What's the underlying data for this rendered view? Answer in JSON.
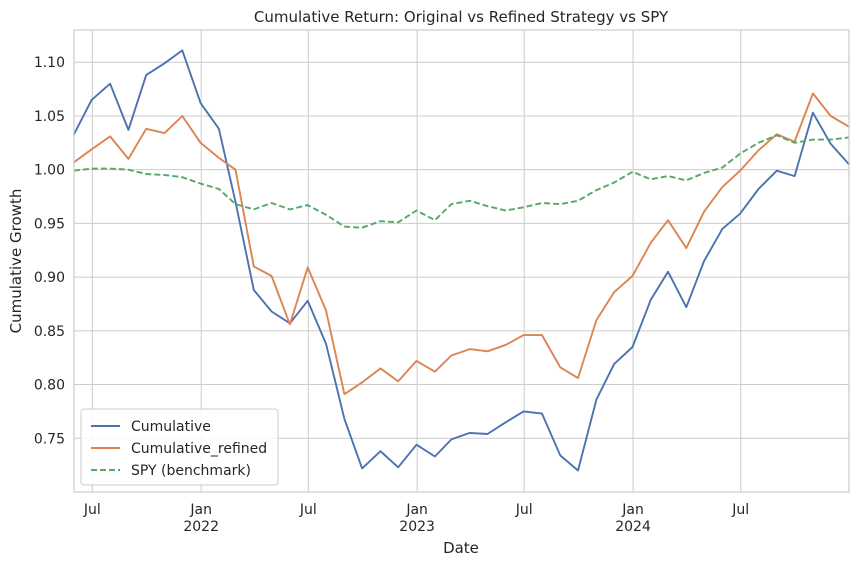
{
  "chart_data": {
    "type": "line",
    "title": "Cumulative Return: Original vs Refined Strategy vs SPY",
    "xlabel": "Date",
    "ylabel": "Cumulative Growth",
    "xlim": [
      "2021-05-31",
      "2024-12-31"
    ],
    "ylim": [
      0.7,
      1.13
    ],
    "grid": true,
    "legend_position": "lower-left",
    "y_ticks": [
      0.75,
      0.8,
      0.85,
      0.9,
      0.95,
      1.0,
      1.05,
      1.1
    ],
    "y_tick_labels": [
      "0.75",
      "0.80",
      "0.85",
      "0.90",
      "0.95",
      "1.00",
      "1.05",
      "1.10"
    ],
    "x_ticks": [
      {
        "date": "2021-07-01",
        "label": "Jul",
        "year": ""
      },
      {
        "date": "2022-01-01",
        "label": "Jan",
        "year": "2022"
      },
      {
        "date": "2022-07-01",
        "label": "Jul",
        "year": ""
      },
      {
        "date": "2023-01-01",
        "label": "Jan",
        "year": "2023"
      },
      {
        "date": "2023-07-01",
        "label": "Jul",
        "year": ""
      },
      {
        "date": "2024-01-01",
        "label": "Jan",
        "year": "2024"
      },
      {
        "date": "2024-07-01",
        "label": "Jul",
        "year": ""
      }
    ],
    "x": [
      "2021-05-31",
      "2021-06-30",
      "2021-07-31",
      "2021-08-31",
      "2021-09-30",
      "2021-10-31",
      "2021-11-30",
      "2021-12-31",
      "2022-01-31",
      "2022-02-28",
      "2022-03-31",
      "2022-04-30",
      "2022-05-31",
      "2022-06-30",
      "2022-07-31",
      "2022-08-31",
      "2022-09-30",
      "2022-10-31",
      "2022-11-30",
      "2022-12-31",
      "2023-01-31",
      "2023-02-28",
      "2023-03-31",
      "2023-04-30",
      "2023-05-31",
      "2023-06-30",
      "2023-07-31",
      "2023-08-31",
      "2023-09-30",
      "2023-10-31",
      "2023-11-30",
      "2023-12-31",
      "2024-01-31",
      "2024-02-29",
      "2024-03-31",
      "2024-04-30",
      "2024-05-31",
      "2024-06-30",
      "2024-07-31",
      "2024-08-31",
      "2024-09-30",
      "2024-10-31",
      "2024-11-30",
      "2024-12-31"
    ],
    "series": [
      {
        "name": "Cumulative",
        "color": "#4c72b0",
        "dash": "solid",
        "values": [
          1.033,
          1.065,
          1.08,
          1.037,
          1.088,
          1.099,
          1.111,
          1.062,
          1.038,
          0.97,
          0.888,
          0.868,
          0.857,
          0.878,
          0.838,
          0.768,
          0.722,
          0.738,
          0.723,
          0.744,
          0.733,
          0.749,
          0.755,
          0.754,
          0.765,
          0.775,
          0.773,
          0.734,
          0.72,
          0.786,
          0.819,
          0.835,
          0.879,
          0.905,
          0.872,
          0.915,
          0.945,
          0.959,
          0.982,
          0.999,
          0.994,
          1.053,
          1.024,
          1.005
        ]
      },
      {
        "name": "Cumulative_refined",
        "color": "#dd8452",
        "dash": "solid",
        "values": [
          1.007,
          1.019,
          1.031,
          1.01,
          1.038,
          1.034,
          1.05,
          1.025,
          1.011,
          1.0,
          0.91,
          0.901,
          0.856,
          0.909,
          0.869,
          0.791,
          0.802,
          0.815,
          0.803,
          0.822,
          0.812,
          0.827,
          0.833,
          0.831,
          0.837,
          0.846,
          0.846,
          0.816,
          0.806,
          0.86,
          0.886,
          0.901,
          0.932,
          0.953,
          0.927,
          0.961,
          0.984,
          0.999,
          1.018,
          1.033,
          1.026,
          1.071,
          1.05,
          1.04
        ]
      },
      {
        "name": "SPY (benchmark)",
        "color": "#55a868",
        "dash": "dashed",
        "values": [
          0.999,
          1.001,
          1.001,
          1.0,
          0.996,
          0.995,
          0.993,
          0.987,
          0.982,
          0.968,
          0.963,
          0.969,
          0.963,
          0.967,
          0.958,
          0.947,
          0.946,
          0.952,
          0.951,
          0.962,
          0.953,
          0.968,
          0.971,
          0.966,
          0.962,
          0.965,
          0.969,
          0.968,
          0.971,
          0.981,
          0.988,
          0.998,
          0.991,
          0.994,
          0.99,
          0.997,
          1.002,
          1.015,
          1.025,
          1.032,
          1.025,
          1.028,
          1.028,
          1.03
        ]
      }
    ]
  }
}
